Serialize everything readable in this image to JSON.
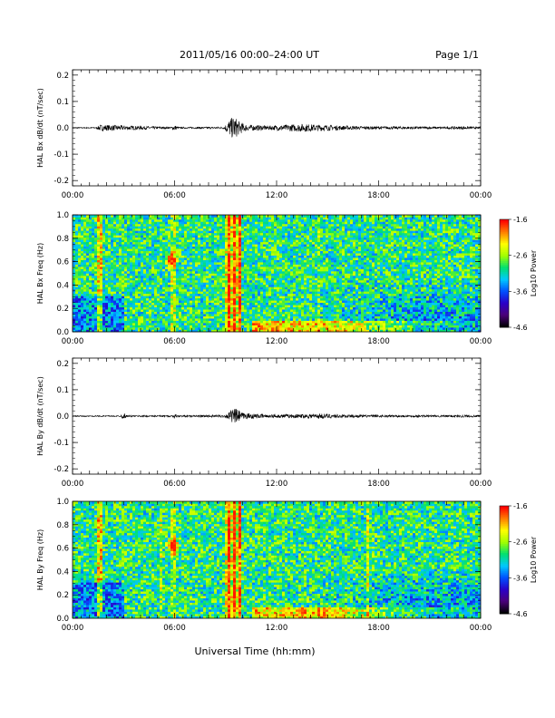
{
  "header": {
    "title": "2011/05/16  00:00–24:00 UT",
    "page": "Page 1/1"
  },
  "xlabel": "Universal Time (hh:mm)",
  "colorbar": {
    "label": "Log10 Power",
    "ticks": [
      -1.6,
      -2.6,
      -3.6,
      -4.6
    ],
    "tick_labels": [
      "-1.6",
      "-2.6",
      "-3.6",
      "-4.6"
    ],
    "range": [
      -4.6,
      -1.6
    ],
    "colormap": [
      "#000000",
      "#4b007a",
      "#2a00c8",
      "#0050ff",
      "#00c8ff",
      "#00e070",
      "#a0ff00",
      "#ffff00",
      "#ff8000",
      "#ff0000"
    ]
  },
  "chart_data": [
    {
      "type": "line",
      "ylabel": "HAL Bx dB/dt (nT/sec)",
      "xlim": [
        0,
        24
      ],
      "ylim": [
        -0.22,
        0.22
      ],
      "xticks": [
        "00:00",
        "06:00",
        "12:00",
        "18:00",
        "00:00"
      ],
      "yticks": [
        0.2,
        0.1,
        0.0,
        -0.1,
        -0.2
      ],
      "ytick_labels": [
        "0.2",
        "0.1",
        "0.0",
        "-0.1",
        "-0.2"
      ],
      "series": [
        {
          "x": [
            0,
            1.4,
            1.6,
            5.8,
            6.0,
            6.2,
            8.9,
            9.2,
            9.5,
            9.8,
            10.2,
            11.5,
            13.5,
            14.5,
            15.5,
            17,
            19.5,
            22,
            23,
            24
          ],
          "amp": [
            0.002,
            0.002,
            0.012,
            0.003,
            0.012,
            0.003,
            0.004,
            0.03,
            0.045,
            0.025,
            0.012,
            0.008,
            0.015,
            0.012,
            0.009,
            0.006,
            0.005,
            0.004,
            0.006,
            0.003
          ],
          "color": "#000000"
        }
      ]
    },
    {
      "type": "heatmap",
      "ylabel": "HAL Bx Freq (Hz)",
      "xlim": [
        0,
        24
      ],
      "ylim": [
        0,
        1.0
      ],
      "xticks": [
        "00:00",
        "06:00",
        "12:00",
        "18:00",
        "00:00"
      ],
      "yticks": [
        1.0,
        0.8,
        0.6,
        0.4,
        0.2,
        0.0
      ],
      "ytick_labels": [
        "1.0",
        "0.8",
        "0.6",
        "0.4",
        "0.2",
        "0.0"
      ],
      "features": {
        "vertical_bands": [
          [
            1.6,
            0.9
          ],
          [
            5.9,
            0.5
          ],
          [
            9.2,
            1.0
          ],
          [
            9.5,
            1.0
          ],
          [
            9.8,
            0.9
          ],
          [
            14.5,
            0.3
          ]
        ],
        "blob": {
          "x": 5.8,
          "y": 0.62,
          "value": -2.0
        },
        "low_band": {
          "x_start": 10.5,
          "x_end": 24,
          "y_top": 0.1
        }
      }
    },
    {
      "type": "line",
      "ylabel": "HAL By dB/dt (nT/sec)",
      "xlim": [
        0,
        24
      ],
      "ylim": [
        -0.22,
        0.22
      ],
      "xticks": [
        "00:00",
        "06:00",
        "12:00",
        "18:00",
        "00:00"
      ],
      "yticks": [
        0.2,
        0.1,
        0.0,
        -0.1,
        -0.2
      ],
      "ytick_labels": [
        "0.2",
        "0.1",
        "0.0",
        "-0.1",
        "-0.2"
      ],
      "series": [
        {
          "x": [
            0,
            2.8,
            3.0,
            3.2,
            5.8,
            6.0,
            6.2,
            9.0,
            9.3,
            9.6,
            10.0,
            11.5,
            13.5,
            14.5,
            15.5,
            17,
            19.5,
            22,
            23,
            24
          ],
          "amp": [
            0.002,
            0.002,
            0.012,
            0.003,
            0.003,
            0.008,
            0.003,
            0.005,
            0.022,
            0.03,
            0.012,
            0.006,
            0.008,
            0.01,
            0.007,
            0.005,
            0.004,
            0.004,
            0.005,
            0.003
          ],
          "color": "#000000"
        }
      ]
    },
    {
      "type": "heatmap",
      "ylabel": "HAL By Freq (Hz)",
      "xlim": [
        0,
        24
      ],
      "ylim": [
        0,
        1.0
      ],
      "xticks": [
        "00:00",
        "06:00",
        "12:00",
        "18:00",
        "00:00"
      ],
      "yticks": [
        1.0,
        0.8,
        0.6,
        0.4,
        0.2,
        0.0
      ],
      "ytick_labels": [
        "1.0",
        "0.8",
        "0.6",
        "0.4",
        "0.2",
        "0.0"
      ],
      "features": {
        "vertical_bands": [
          [
            1.6,
            1.0
          ],
          [
            5.2,
            0.6
          ],
          [
            5.9,
            0.5
          ],
          [
            9.2,
            1.0
          ],
          [
            9.5,
            1.0
          ],
          [
            9.8,
            0.9
          ],
          [
            17.4,
            0.7
          ]
        ],
        "blob": {
          "x": 5.9,
          "y": 0.62,
          "value": -2.0
        },
        "low_band": {
          "x_start": 10.5,
          "x_end": 24,
          "y_top": 0.1
        }
      }
    }
  ]
}
